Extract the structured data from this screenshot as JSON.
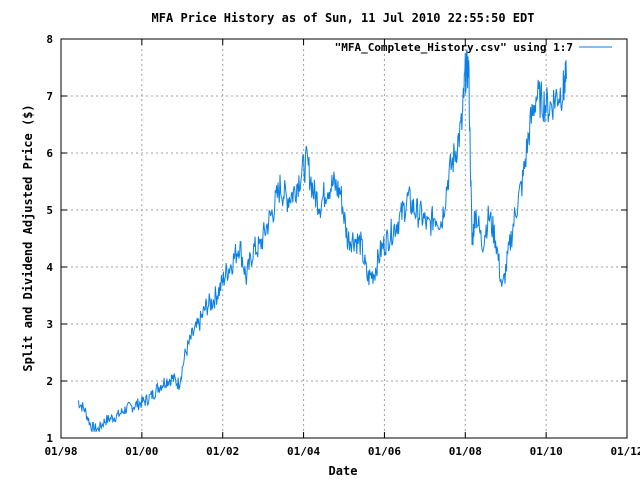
{
  "chart_data": {
    "type": "line",
    "title": "MFA Price History as of Sun, 11 Jul 2010 22:55:50 EDT",
    "xlabel": "Date",
    "ylabel": "Split and Dividend Adjusted Price ($)",
    "x_ticks": [
      "01/98",
      "01/00",
      "01/02",
      "01/04",
      "01/06",
      "01/08",
      "01/10",
      "01/12"
    ],
    "xlim": [
      "1998-01",
      "2012-01"
    ],
    "y_ticks": [
      1,
      2,
      3,
      4,
      5,
      6,
      7,
      8
    ],
    "ylim": [
      1,
      8
    ],
    "grid": true,
    "legend_position": "top-right",
    "series": [
      {
        "name": "\"MFA_Complete_History.csv\" using 1:7",
        "color": "#0a7fe6",
        "x": [
          "1998-06",
          "1998-08",
          "1998-10",
          "1998-12",
          "1999-02",
          "1999-04",
          "1999-06",
          "1999-08",
          "1999-10",
          "1999-12",
          "2000-02",
          "2000-04",
          "2000-06",
          "2000-08",
          "2000-10",
          "2000-12",
          "2001-02",
          "2001-04",
          "2001-06",
          "2001-08",
          "2001-10",
          "2001-12",
          "2002-02",
          "2002-04",
          "2002-06",
          "2002-08",
          "2002-10",
          "2002-12",
          "2003-02",
          "2003-04",
          "2003-06",
          "2003-08",
          "2003-10",
          "2003-12",
          "2004-02",
          "2004-04",
          "2004-06",
          "2004-08",
          "2004-10",
          "2004-12",
          "2005-02",
          "2005-04",
          "2005-06",
          "2005-08",
          "2005-10",
          "2005-12",
          "2006-02",
          "2006-04",
          "2006-06",
          "2006-08",
          "2006-10",
          "2006-12",
          "2007-02",
          "2007-04",
          "2007-06",
          "2007-08",
          "2007-10",
          "2007-12",
          "2008-01",
          "2008-02",
          "2008-03",
          "2008-04",
          "2008-06",
          "2008-08",
          "2008-10",
          "2008-12",
          "2009-02",
          "2009-04",
          "2009-06",
          "2009-08",
          "2009-10",
          "2009-12",
          "2010-02",
          "2010-04",
          "2010-06",
          "2010-07"
        ],
        "y": [
          1.65,
          1.5,
          1.2,
          1.15,
          1.3,
          1.35,
          1.4,
          1.5,
          1.55,
          1.6,
          1.65,
          1.75,
          1.9,
          2.0,
          2.05,
          1.95,
          2.5,
          2.8,
          3.0,
          3.3,
          3.4,
          3.6,
          3.9,
          4.1,
          4.4,
          3.8,
          4.3,
          4.35,
          4.7,
          5.0,
          5.4,
          5.2,
          5.3,
          5.6,
          5.85,
          5.3,
          5.1,
          5.4,
          5.45,
          5.3,
          4.5,
          4.5,
          4.4,
          3.8,
          3.9,
          4.3,
          4.5,
          4.7,
          4.9,
          5.2,
          5.0,
          4.9,
          4.7,
          4.9,
          4.8,
          5.6,
          6.0,
          6.5,
          7.4,
          7.5,
          4.4,
          5.0,
          4.4,
          4.9,
          4.5,
          3.6,
          4.3,
          5.0,
          5.5,
          6.4,
          7.0,
          6.9,
          6.8,
          7.0,
          7.1,
          7.3
        ]
      }
    ]
  }
}
